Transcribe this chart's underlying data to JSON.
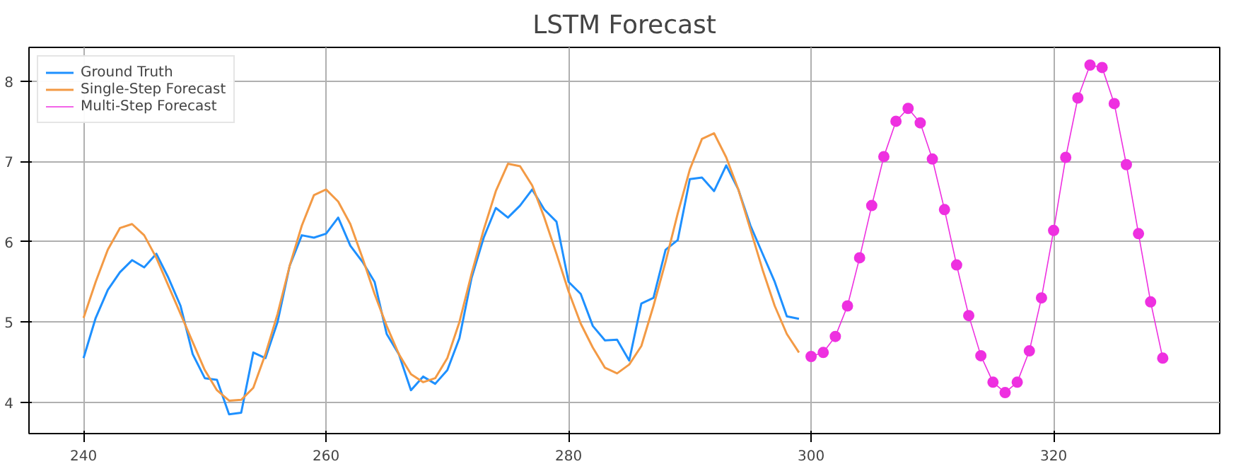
{
  "chart_data": {
    "type": "line",
    "title": "LSTM Forecast",
    "xlim": [
      235.5,
      333.7
    ],
    "ylim": [
      3.61,
      8.42
    ],
    "xticks": [
      240,
      260,
      280,
      300,
      320
    ],
    "yticks": [
      4,
      5,
      6,
      7,
      8
    ],
    "grid": true,
    "legend": "top left",
    "series": [
      {
        "name": "Ground Truth",
        "color": "#1e90ff",
        "marker": "none",
        "x": [
          240,
          241,
          242,
          243,
          244,
          245,
          246,
          247,
          248,
          249,
          250,
          251,
          252,
          253,
          254,
          255,
          256,
          257,
          258,
          259,
          260,
          261,
          262,
          263,
          264,
          265,
          266,
          267,
          268,
          269,
          270,
          271,
          272,
          273,
          274,
          275,
          276,
          277,
          278,
          279,
          280,
          281,
          282,
          283,
          284,
          285,
          286,
          287,
          288,
          289,
          290,
          291,
          292,
          293,
          294,
          295,
          296,
          297,
          298,
          299
        ],
        "values": [
          4.55,
          5.05,
          5.4,
          5.62,
          5.77,
          5.68,
          5.85,
          5.55,
          5.2,
          4.6,
          4.3,
          4.28,
          3.85,
          3.87,
          4.62,
          4.55,
          5.0,
          5.7,
          6.08,
          6.05,
          6.1,
          6.3,
          5.95,
          5.75,
          5.5,
          4.85,
          4.6,
          4.15,
          4.32,
          4.23,
          4.4,
          4.8,
          5.55,
          6.05,
          6.42,
          6.3,
          6.45,
          6.65,
          6.4,
          6.25,
          5.5,
          5.35,
          4.95,
          4.77,
          4.78,
          4.52,
          5.23,
          5.3,
          5.9,
          6.02,
          6.78,
          6.8,
          6.63,
          6.95,
          6.65,
          6.2,
          5.85,
          5.5,
          5.07,
          5.04
        ]
      },
      {
        "name": "Single-Step Forecast",
        "color": "#f39a45",
        "marker": "none",
        "x": [
          240,
          241,
          242,
          243,
          244,
          245,
          246,
          247,
          248,
          249,
          250,
          251,
          252,
          253,
          254,
          255,
          256,
          257,
          258,
          259,
          260,
          261,
          262,
          263,
          264,
          265,
          266,
          267,
          268,
          269,
          270,
          271,
          272,
          273,
          274,
          275,
          276,
          277,
          278,
          279,
          280,
          281,
          282,
          283,
          284,
          285,
          286,
          287,
          288,
          289,
          290,
          291,
          292,
          293,
          294,
          295,
          296,
          297,
          298,
          299
        ],
        "values": [
          5.05,
          5.5,
          5.9,
          6.17,
          6.22,
          6.08,
          5.8,
          5.45,
          5.1,
          4.75,
          4.4,
          4.15,
          4.02,
          4.03,
          4.18,
          4.6,
          5.1,
          5.7,
          6.2,
          6.58,
          6.65,
          6.5,
          6.22,
          5.8,
          5.35,
          4.95,
          4.6,
          4.35,
          4.25,
          4.3,
          4.55,
          5.0,
          5.6,
          6.15,
          6.63,
          6.97,
          6.94,
          6.7,
          6.3,
          5.85,
          5.38,
          4.98,
          4.68,
          4.43,
          4.36,
          4.47,
          4.7,
          5.2,
          5.75,
          6.35,
          6.9,
          7.28,
          7.35,
          7.05,
          6.65,
          6.15,
          5.65,
          5.2,
          4.85,
          4.62
        ]
      },
      {
        "name": "Multi-Step Forecast",
        "color": "#ee30e0",
        "marker": "circle",
        "x": [
          300,
          301,
          302,
          303,
          304,
          305,
          306,
          307,
          308,
          309,
          310,
          311,
          312,
          313,
          314,
          315,
          316,
          317,
          318,
          319,
          320,
          321,
          322,
          323,
          324,
          325,
          326,
          327,
          328,
          329
        ],
        "values": [
          4.57,
          4.62,
          4.82,
          5.2,
          5.8,
          6.45,
          7.06,
          7.5,
          7.66,
          7.48,
          7.03,
          6.4,
          5.71,
          5.08,
          4.58,
          4.25,
          4.12,
          4.25,
          4.64,
          5.3,
          6.14,
          7.05,
          7.79,
          8.2,
          8.17,
          7.72,
          6.96,
          6.1,
          5.25,
          4.55
        ]
      }
    ]
  }
}
